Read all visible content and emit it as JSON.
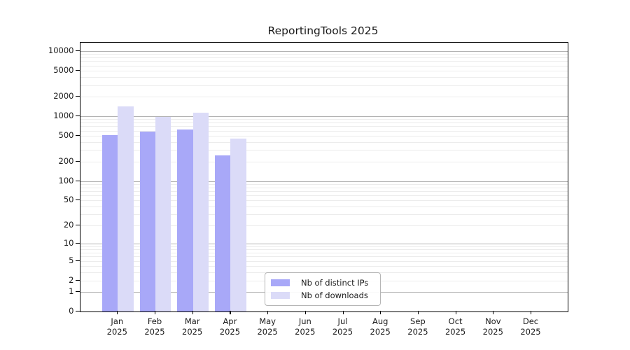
{
  "window": {
    "background": "#ffffff"
  },
  "chart_data": {
    "type": "bar",
    "title": "ReportingTools 2025",
    "y_scale": "log10(1+v), 0 at baseline",
    "grid": "horizontal gridlines: dark at powers of 10, light at 2-9 multiples",
    "legend_position": "inside plot, bottom center-left",
    "categories": [
      "Jan 2025",
      "Feb 2025",
      "Mar 2025",
      "Apr 2025",
      "May 2025",
      "Jun 2025",
      "Jul 2025",
      "Aug 2025",
      "Sep 2025",
      "Oct 2025",
      "Nov 2025",
      "Dec 2025"
    ],
    "y_ticks": [
      0,
      1,
      2,
      5,
      10,
      20,
      50,
      100,
      200,
      500,
      1000,
      2000,
      5000,
      10000
    ],
    "ylim": [
      0,
      13500
    ],
    "xlabel": "",
    "ylabel": "",
    "series": [
      {
        "name": "Nb of distinct IPs",
        "color": "#a8a8f8",
        "values": [
          512,
          580,
          620,
          252,
          null,
          null,
          null,
          null,
          null,
          null,
          null,
          null
        ]
      },
      {
        "name": "Nb of downloads",
        "color": "#dbdbf8",
        "values": [
          1430,
          985,
          1120,
          455,
          null,
          null,
          null,
          null,
          null,
          null,
          null,
          null
        ]
      }
    ],
    "colors": {
      "major_grid": "#b2b2b2",
      "minor_grid": "#ececec",
      "axis": "#000000",
      "text": "#1a1a1a"
    }
  }
}
